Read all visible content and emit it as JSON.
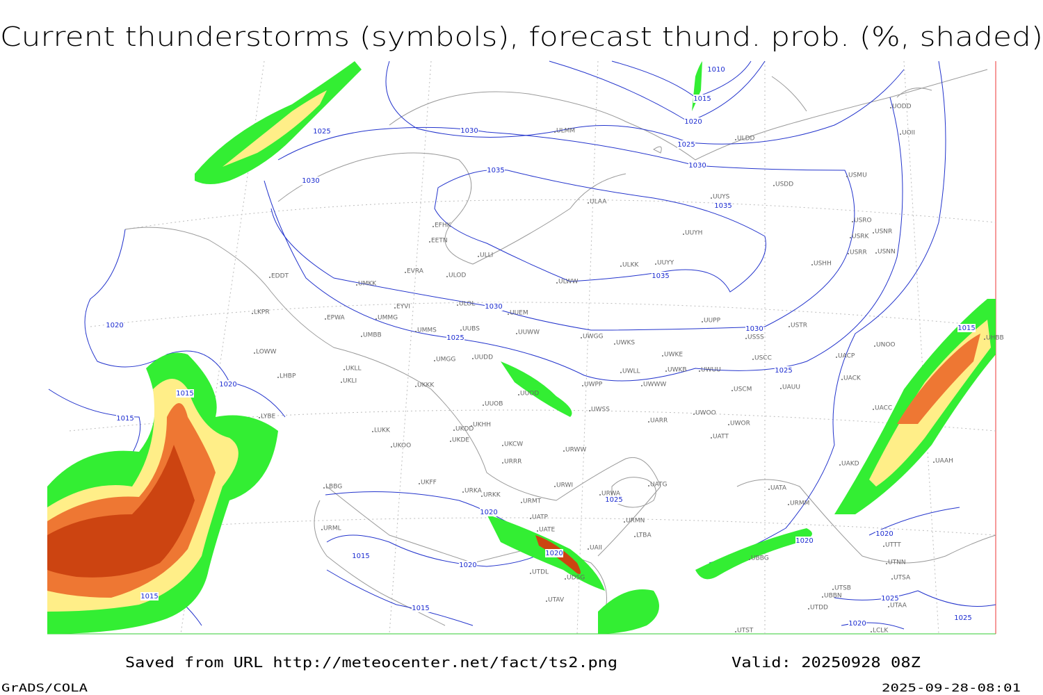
{
  "title": "Current thunderstorms (symbols), forecast thund. prob. (%, shaded)",
  "map": {
    "isobar_labels": [
      1010,
      1015,
      1020,
      1025,
      1025,
      1030,
      1030,
      1030,
      1035,
      1035,
      1035,
      1030,
      1030,
      1025,
      1025,
      1020,
      1020,
      1015,
      1015,
      1015,
      1025,
      1020,
      1020,
      1020,
      1020,
      1015,
      1020,
      1015,
      1015,
      1025,
      1020,
      1025
    ],
    "stations": [
      "ULMM",
      "ULDD",
      "UUYS",
      "ULAA",
      "USDD",
      "USMU",
      "UODD",
      "UOII",
      "EFHK",
      "EETN",
      "ULLI",
      "USRO",
      "USRK",
      "USNR",
      "USRR",
      "USNN",
      "UUYH",
      "ULKK",
      "UUYY",
      "USHH",
      "EVRA",
      "ULOD",
      "EDDT",
      "UMKK",
      "ULWW",
      "EYVI",
      "ULOL",
      "UUEM",
      "LKPR",
      "EPWA",
      "UMMG",
      "UUPP",
      "USTR",
      "UMMS",
      "UUBS",
      "UUWW",
      "UWGG",
      "UWKS",
      "USSS",
      "UMBB",
      "UNOO",
      "UHBB",
      "UWKE",
      "USCC",
      "UACP",
      "LOWW",
      "UMGG",
      "UUDD",
      "UKLL",
      "UWLL",
      "UWKB",
      "UWUU",
      "LHBP",
      "UKLI",
      "UKKK",
      "UWPP",
      "UWWW",
      "UAUU",
      "UACK",
      "UUOD",
      "USCM",
      "LYBE",
      "UUOB",
      "UWSS",
      "UWOO",
      "UACC",
      "UKHH",
      "UARR",
      "UWOR",
      "LUKK",
      "UKDD",
      "UATT",
      "UKDE",
      "UKCW",
      "UKOO",
      "URWW",
      "URRR",
      "UAKD",
      "UAAH",
      "UKFF",
      "URWI",
      "UATG",
      "LBBG",
      "URKA",
      "URKK",
      "URWA",
      "UATA",
      "URMT",
      "URMM",
      "UATP",
      "URMN",
      "UATE",
      "LTBA",
      "URML",
      "UAII",
      "UTTT",
      "UTNN",
      "UBBG",
      "UDSG",
      "UTDL",
      "UTSA",
      "UTSB",
      "UBBN",
      "UTAV",
      "UTDD",
      "UTAA",
      "UTST",
      "LCLK"
    ]
  },
  "footer": {
    "source": "Saved from URL http://meteocenter.net/fact/ts2.png",
    "valid": "Valid: 20250928 08Z",
    "software": "GrADS/COLA",
    "timestamp": "2025-09-28-08:01"
  }
}
